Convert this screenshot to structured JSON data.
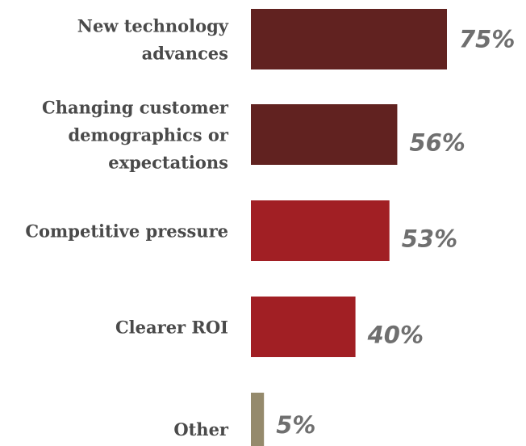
{
  "chart_data": {
    "type": "bar",
    "orientation": "horizontal",
    "categories": [
      "New technology advances",
      "Changing customer demographics or expectations",
      "Competitive pressure",
      "Clearer ROI",
      "Other"
    ],
    "category_label_lines": [
      [
        "New technology",
        "advances"
      ],
      [
        "Changing customer",
        "demographics or",
        "expectations"
      ],
      [
        "Competitive pressure"
      ],
      [
        "Clearer ROI"
      ],
      [
        "Other"
      ]
    ],
    "values": [
      75,
      56,
      53,
      40,
      5
    ],
    "value_labels": [
      "75%",
      "56%",
      "53%",
      "40%",
      "5%"
    ],
    "bar_colors": [
      "#612220",
      "#612220",
      "#a11f24",
      "#a11f24",
      "#958a6c"
    ],
    "xlim": [
      0,
      100
    ],
    "title": "",
    "xlabel": "",
    "ylabel": "",
    "grid": false,
    "legend": "none"
  }
}
